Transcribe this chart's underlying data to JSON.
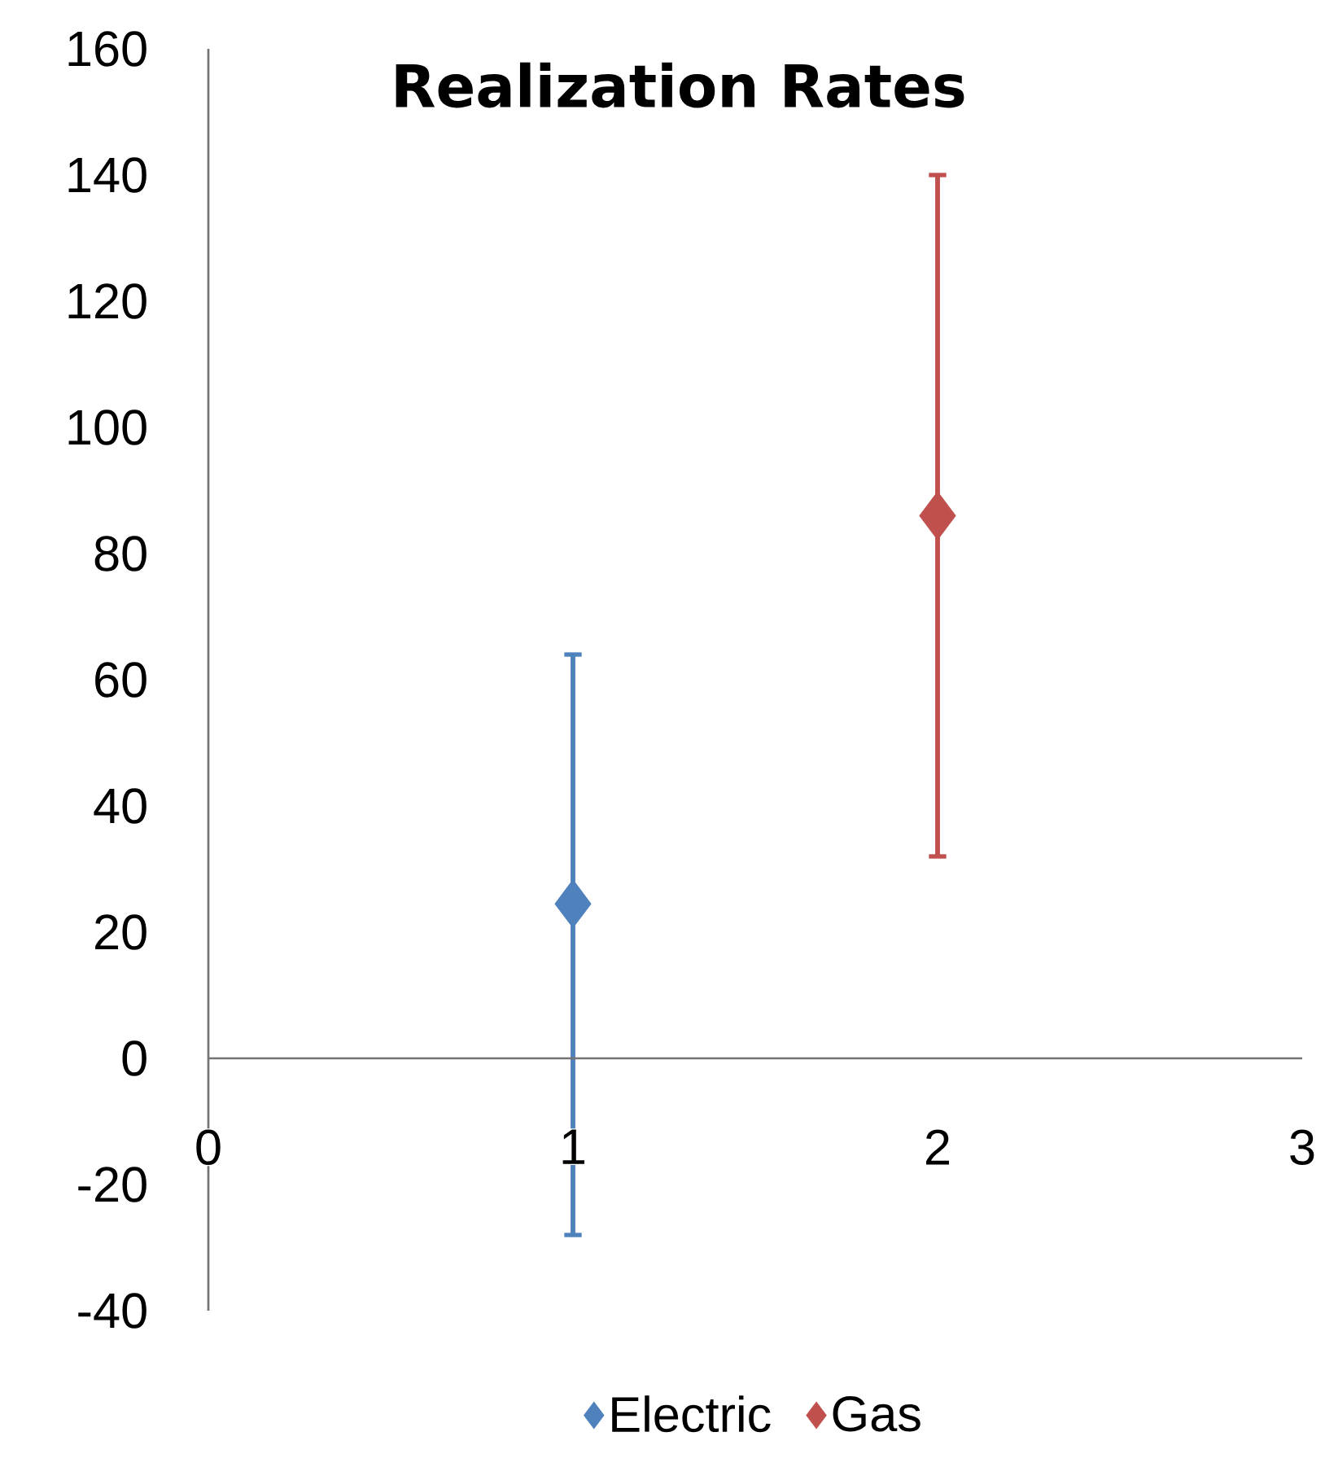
{
  "chart_data": {
    "type": "scatter",
    "title": "Realization Rates",
    "xlim": [
      0,
      3
    ],
    "xticks": [
      0,
      1,
      2,
      3
    ],
    "ylim": [
      -40,
      160
    ],
    "yticks": [
      -40,
      -20,
      0,
      20,
      40,
      60,
      80,
      100,
      120,
      140,
      160
    ],
    "marker": "diamond",
    "legend": "bottom",
    "series": [
      {
        "name": "Electric",
        "color": "#4f81bd",
        "x": [
          1
        ],
        "values": [
          24.5
        ],
        "errors": [
          [
            -28,
            64
          ]
        ]
      },
      {
        "name": "Gas",
        "color": "#c0504d",
        "x": [
          2
        ],
        "values": [
          86
        ],
        "errors": [
          [
            32,
            140
          ]
        ]
      }
    ]
  }
}
